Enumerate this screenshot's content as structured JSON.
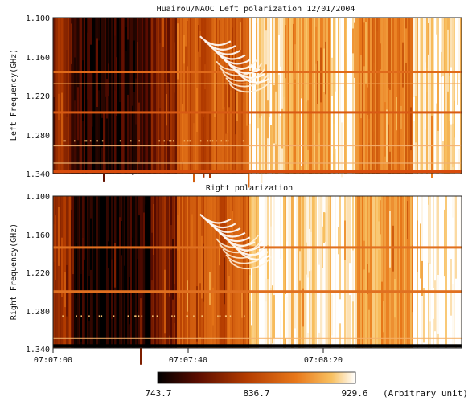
{
  "chart_data": {
    "type": "heatmap",
    "colormap": [
      "#000000",
      "#5a0c00",
      "#b43c00",
      "#e8781a",
      "#f8c060",
      "#ffffff"
    ],
    "panels": [
      {
        "id": "left",
        "title": "Huairou/NAOC  Left polarization  12/01/2004",
        "ylabel": "Left Frequency(GHz)",
        "yticks": [
          "1.100",
          "1.160",
          "1.220",
          "1.280",
          "1.340"
        ],
        "ytick_values": [
          1.1,
          1.16,
          1.22,
          1.28,
          1.34
        ]
      },
      {
        "id": "right",
        "title": "Right polarization",
        "ylabel": "Right Frequency(GHz)",
        "yticks": [
          "1.100",
          "1.160",
          "1.220",
          "1.280",
          "1.340"
        ],
        "ytick_values": [
          1.1,
          1.16,
          1.22,
          1.28,
          1.34
        ]
      }
    ],
    "xticks": [
      "07:07:00",
      "07:07:40",
      "07:08:20"
    ],
    "xtick_seconds": [
      0,
      40,
      80
    ],
    "xlim_seconds": [
      0,
      121
    ],
    "ylim_ghz": [
      1.1,
      1.34
    ],
    "colorbar": {
      "ticks": [
        "743.7",
        "836.7",
        "929.6"
      ],
      "tick_values": [
        743.7,
        836.7,
        929.6
      ],
      "range": [
        743.7,
        929.6
      ],
      "unit_label": "(Arbitrary unit)"
    }
  }
}
